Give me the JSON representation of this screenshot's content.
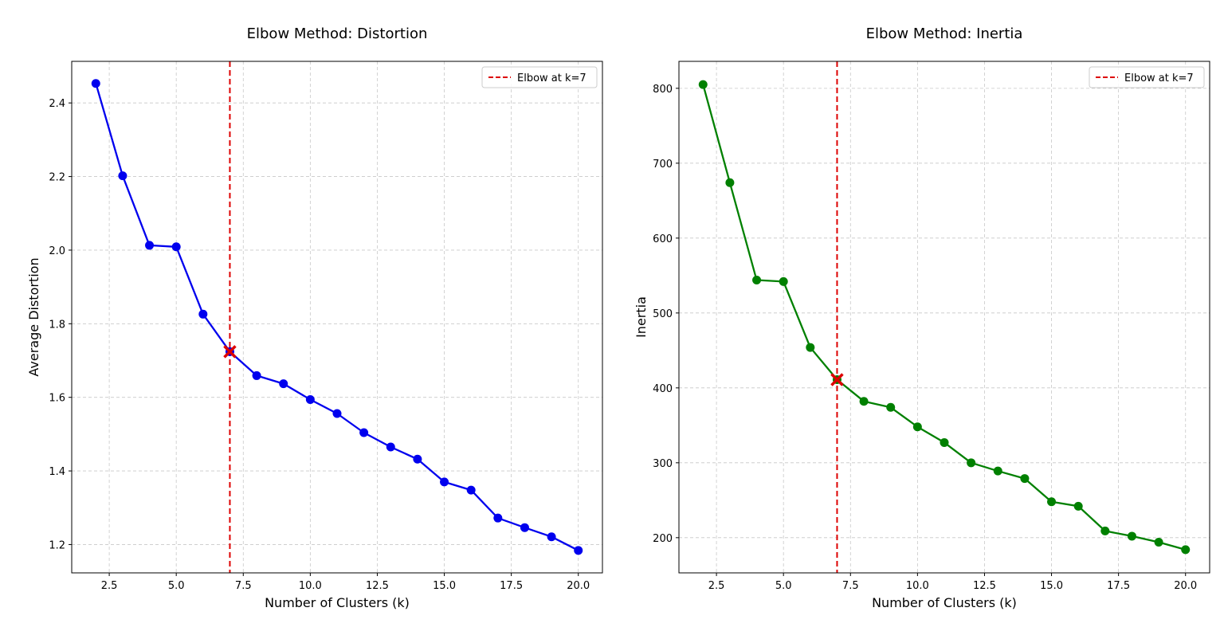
{
  "chart_data": [
    {
      "type": "line",
      "title": "Elbow Method: Distortion",
      "xlabel": "Number of Clusters (k)",
      "ylabel": "Average Distortion",
      "xlim": [
        1.1,
        20.9
      ],
      "ylim": [
        1.123,
        2.513
      ],
      "xticks": [
        2.5,
        5.0,
        7.5,
        10.0,
        12.5,
        15.0,
        17.5,
        20.0
      ],
      "yticks": [
        1.2,
        1.4,
        1.6,
        1.8,
        2.0,
        2.2,
        2.4
      ],
      "tick_decimals": 1,
      "grid": true,
      "legend_placement": "top-right",
      "color": "#0000ee",
      "x": [
        2,
        3,
        4,
        5,
        6,
        7,
        8,
        9,
        10,
        11,
        12,
        13,
        14,
        15,
        16,
        17,
        18,
        19,
        20
      ],
      "y": [
        2.453,
        2.202,
        2.013,
        2.009,
        1.826,
        1.724,
        1.659,
        1.637,
        1.594,
        1.556,
        1.504,
        1.465,
        1.432,
        1.37,
        1.348,
        1.272,
        1.246,
        1.221,
        1.184
      ],
      "elbow": {
        "k": 7,
        "value": 1.724,
        "label": "Elbow at k=7",
        "color": "#dd0000"
      }
    },
    {
      "type": "line",
      "title": "Elbow Method: Inertia",
      "xlabel": "Number of Clusters (k)",
      "ylabel": "Inertia",
      "xlim": [
        1.1,
        20.9
      ],
      "ylim": [
        153,
        836
      ],
      "xticks": [
        2.5,
        5.0,
        7.5,
        10.0,
        12.5,
        15.0,
        17.5,
        20.0
      ],
      "yticks": [
        200,
        300,
        400,
        500,
        600,
        700,
        800
      ],
      "tick_decimals": 0,
      "grid": true,
      "legend_placement": "top-right",
      "color": "#008000",
      "x": [
        2,
        3,
        4,
        5,
        6,
        7,
        8,
        9,
        10,
        11,
        12,
        13,
        14,
        15,
        16,
        17,
        18,
        19,
        20
      ],
      "y": [
        805,
        674,
        544,
        542,
        454,
        411,
        382,
        374,
        348,
        327,
        300,
        289,
        279,
        248,
        242,
        209,
        202,
        194,
        184
      ],
      "elbow": {
        "k": 7,
        "value": 411,
        "label": "Elbow at k=7",
        "color": "#dd0000"
      }
    }
  ]
}
